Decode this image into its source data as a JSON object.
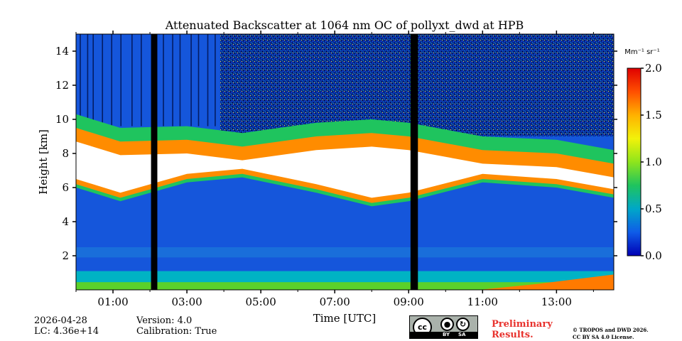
{
  "chart_data": {
    "type": "heatmap",
    "title": "Attenuated Backscatter at 1064 nm OC of pollyxt_dwd at HPB",
    "xlabel": "Time [UTC]",
    "ylabel": "Height [km]",
    "xlim": [
      0.0,
      14.55
    ],
    "ylim": [
      0.0,
      15.0
    ],
    "x_ticks": [
      {
        "value": 1,
        "label": "01:00"
      },
      {
        "value": 3,
        "label": "03:00"
      },
      {
        "value": 5,
        "label": "05:00"
      },
      {
        "value": 7,
        "label": "07:00"
      },
      {
        "value": 9,
        "label": "09:00"
      },
      {
        "value": 11,
        "label": "11:00"
      },
      {
        "value": 13,
        "label": "13:00"
      }
    ],
    "x_minor_ticks": [
      0,
      2,
      4,
      6,
      8,
      10,
      12,
      14
    ],
    "y_ticks": [
      2,
      4,
      6,
      8,
      10,
      12,
      14
    ],
    "colorbar": {
      "label": "Mm⁻¹ sr⁻¹",
      "range": [
        0.0,
        2.0
      ],
      "ticks": [
        "0.0",
        "0.5",
        "1.0",
        "1.5",
        "2.0"
      ],
      "colors": [
        "#0000b4",
        "#0f5ce8",
        "#00a7c8",
        "#1fc45e",
        "#8ee51c",
        "#f2f20a",
        "#ffb100",
        "#ff4f00",
        "#e00000"
      ]
    },
    "data_gaps_hours": [
      [
        2.03,
        2.2
      ],
      [
        9.05,
        9.25
      ]
    ],
    "layers": [
      {
        "name": "cloud layer (saturated)",
        "base_km": [
          6.0,
          5.2,
          6.3,
          6.6,
          5.7,
          4.9,
          5.2,
          6.3,
          6.0,
          5.4
        ],
        "top_km": [
          10.3,
          9.5,
          9.6,
          9.2,
          9.8,
          10.0,
          9.8,
          9.0,
          8.8,
          8.2
        ],
        "hours": [
          0,
          1.2,
          3.0,
          4.5,
          6.5,
          8.0,
          9.0,
          11.0,
          13.0,
          14.55
        ]
      },
      {
        "name": "boundary layer",
        "top_km": 1.1,
        "value": 1.0
      },
      {
        "name": "free troposphere background",
        "value": 0.2
      }
    ]
  },
  "footer": {
    "date": "2026-04-28",
    "lc": "LC: 4.36e+14",
    "version": "Version: 4.0",
    "calibration": "Calibration: True",
    "preliminary_line1": "Preliminary",
    "preliminary_line2": "Results.",
    "copyright_line1": "© TROPOS and DWD 2026.",
    "copyright_line2": "CC BY SA 4.0 License.",
    "cc_by_label": "BY",
    "cc_sa_label": "SA",
    "cc_mark": "cc"
  }
}
